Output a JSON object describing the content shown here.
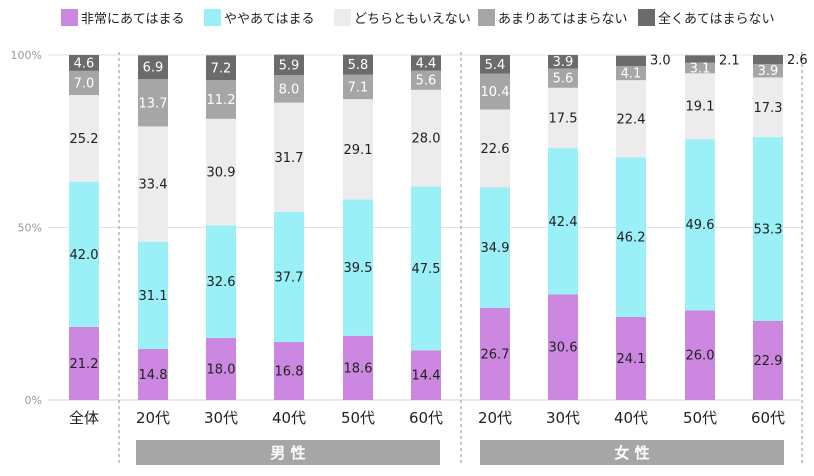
{
  "chart_data": {
    "type": "bar",
    "stacked": true,
    "ylim": [
      0,
      100
    ],
    "yticks": [
      {
        "value": 0,
        "label": "0%"
      },
      {
        "value": 50,
        "label": "50%"
      },
      {
        "value": 100,
        "label": "100%"
      }
    ],
    "grid": true,
    "legend_position": "top",
    "categories": [
      "全体",
      "20代",
      "30代",
      "40代",
      "50代",
      "60代",
      "20代",
      "30代",
      "40代",
      "50代",
      "60代"
    ],
    "groups": [
      {
        "label": "男 性",
        "categories_index": [
          1,
          2,
          3,
          4,
          5
        ]
      },
      {
        "label": "女 性",
        "categories_index": [
          6,
          7,
          8,
          9,
          10
        ]
      }
    ],
    "series": [
      {
        "name": "非常にあてはまる",
        "color": "#cc88e0",
        "values": [
          21.2,
          14.8,
          18.0,
          16.8,
          18.6,
          14.4,
          26.7,
          30.6,
          24.1,
          26.0,
          22.9
        ]
      },
      {
        "name": "ややあてはまる",
        "color": "#9bf0f7",
        "values": [
          42.0,
          31.1,
          32.6,
          37.7,
          39.5,
          47.5,
          34.9,
          42.4,
          46.2,
          49.6,
          53.3
        ]
      },
      {
        "name": "どちらともいえない",
        "color": "#ececec",
        "values": [
          25.2,
          33.4,
          30.9,
          31.7,
          29.1,
          28.0,
          22.6,
          17.5,
          22.4,
          19.1,
          17.3
        ]
      },
      {
        "name": "あまりあてはまらない",
        "color": "#a6a6a6",
        "values": [
          7.0,
          13.7,
          11.2,
          8.0,
          7.1,
          5.6,
          10.4,
          5.6,
          4.1,
          3.1,
          3.9
        ]
      },
      {
        "name": "全くあてはまらない",
        "color": "#6b6b6b",
        "values": [
          4.6,
          6.9,
          7.2,
          5.9,
          5.8,
          4.4,
          5.4,
          3.9,
          3.0,
          2.1,
          2.6
        ]
      }
    ],
    "value_labels": [
      [
        "21.2",
        "14.8",
        "18.0",
        "16.8",
        "18.6",
        "14.4",
        "26.7",
        "30.6",
        "24.1",
        "26.0",
        "22.9"
      ],
      [
        "42.0",
        "31.1",
        "32.6",
        "37.7",
        "39.5",
        "47.5",
        "34.9",
        "42.4",
        "46.2",
        "49.6",
        "53.3"
      ],
      [
        "25.2",
        "33.4",
        "30.9",
        "31.7",
        "29.1",
        "28.0",
        "22.6",
        "17.5",
        "22.4",
        "19.1",
        "17.3"
      ],
      [
        "7.0",
        "13.7",
        "11.2",
        "8.0",
        "7.1",
        "5.6",
        "10.4",
        "5.6",
        "4.1",
        "3.1",
        "3.9"
      ],
      [
        "4.6",
        "6.9",
        "7.2",
        "5.9",
        "5.8",
        "4.4",
        "5.4",
        "3.9",
        "3.0",
        "2.1",
        "2.6"
      ]
    ],
    "outside_label_series": 4,
    "outside_label_categories": [
      8,
      9,
      10
    ]
  }
}
